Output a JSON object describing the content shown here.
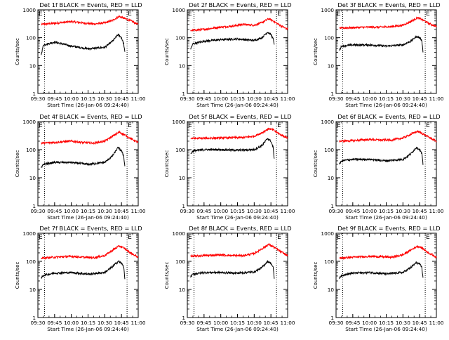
{
  "figure": {
    "ylabel": "Counts/sec",
    "xlabel": "Start Time (26-Jan-06 09:24:40)",
    "x_tick_labels": [
      "09:30",
      "09:45",
      "10:00",
      "10:15",
      "10:30",
      "10:45",
      "11:00"
    ],
    "y_tick_labels": [
      "1",
      "10",
      "100",
      "1000"
    ],
    "marker_glyph": "E",
    "colors": {
      "events": "#000000",
      "lld": "#ff0000",
      "axes": "#000000",
      "background": "#ffffff"
    }
  },
  "chart_data": [
    {
      "type": "line",
      "title": "Det 1f BLACK = Events, RED = LLD",
      "xlabel": "Start Time (26-Jan-06 09:24:40)",
      "ylabel": "Counts/sec",
      "xlim": [
        "09:30",
        "11:00"
      ],
      "ylim": [
        1,
        1000
      ],
      "yscale": "log",
      "grid": false,
      "markers": [
        "09:36",
        "10:50"
      ],
      "series": [
        {
          "color": "#ff0000",
          "x": [
            "09:33",
            "09:45",
            "10:00",
            "10:10",
            "10:20",
            "10:30",
            "10:37",
            "10:43",
            "10:47",
            "10:53",
            "11:00"
          ],
          "values": [
            300,
            330,
            380,
            340,
            310,
            340,
            420,
            580,
            500,
            410,
            300
          ]
        },
        {
          "color": "#000000",
          "x": [
            "09:33",
            "09:35",
            "09:45",
            "10:00",
            "10:15",
            "10:30",
            "10:37",
            "10:42",
            "10:45",
            "10:47",
            "10:48"
          ],
          "values": [
            25,
            55,
            70,
            50,
            40,
            45,
            75,
            130,
            100,
            60,
            30
          ]
        }
      ]
    },
    {
      "type": "line",
      "title": "Det 2f BLACK = Events, RED = LLD",
      "xlabel": "Start Time (26-Jan-06 09:24:40)",
      "ylabel": "Counts/sec",
      "xlim": [
        "09:30",
        "11:00"
      ],
      "ylim": [
        1,
        1000
      ],
      "yscale": "log",
      "grid": false,
      "markers": [
        "09:36",
        "10:50"
      ],
      "series": [
        {
          "color": "#ff0000",
          "x": [
            "09:33",
            "09:45",
            "10:00",
            "10:10",
            "10:20",
            "10:30",
            "10:37",
            "10:43",
            "10:47",
            "10:53",
            "11:00"
          ],
          "values": [
            180,
            200,
            240,
            260,
            300,
            280,
            350,
            480,
            400,
            280,
            200
          ]
        },
        {
          "color": "#000000",
          "x": [
            "09:33",
            "09:35",
            "09:45",
            "10:00",
            "10:15",
            "10:30",
            "10:37",
            "10:42",
            "10:45",
            "10:47",
            "10:48"
          ],
          "values": [
            40,
            60,
            75,
            85,
            90,
            80,
            100,
            160,
            130,
            90,
            60
          ]
        }
      ]
    },
    {
      "type": "line",
      "title": "Det 3f BLACK = Events, RED = LLD",
      "xlabel": "Start Time (26-Jan-06 09:24:40)",
      "ylabel": "Counts/sec",
      "xlim": [
        "09:30",
        "11:00"
      ],
      "ylim": [
        1,
        1000
      ],
      "yscale": "log",
      "grid": false,
      "markers": [
        "09:36",
        "10:50"
      ],
      "series": [
        {
          "color": "#ff0000",
          "x": [
            "09:33",
            "09:45",
            "10:00",
            "10:10",
            "10:20",
            "10:30",
            "10:37",
            "10:43",
            "10:47",
            "10:53",
            "11:00"
          ],
          "values": [
            220,
            230,
            240,
            240,
            250,
            280,
            380,
            520,
            450,
            330,
            250
          ]
        },
        {
          "color": "#000000",
          "x": [
            "09:33",
            "09:35",
            "09:45",
            "10:00",
            "10:15",
            "10:30",
            "10:37",
            "10:42",
            "10:45",
            "10:47",
            "10:48"
          ],
          "values": [
            35,
            50,
            55,
            55,
            50,
            55,
            75,
            110,
            100,
            80,
            30
          ]
        }
      ]
    },
    {
      "type": "line",
      "title": "Det 4f BLACK = Events, RED = LLD",
      "xlabel": "Start Time (26-Jan-06 09:24:40)",
      "ylabel": "Counts/sec",
      "xlim": [
        "09:30",
        "11:00"
      ],
      "ylim": [
        1,
        1000
      ],
      "yscale": "log",
      "grid": false,
      "markers": [
        "09:36",
        "10:50"
      ],
      "series": [
        {
          "color": "#ff0000",
          "x": [
            "09:33",
            "09:45",
            "10:00",
            "10:10",
            "10:20",
            "10:30",
            "10:37",
            "10:43",
            "10:47",
            "10:53",
            "11:00"
          ],
          "values": [
            170,
            180,
            200,
            180,
            170,
            200,
            300,
            420,
            350,
            250,
            180
          ]
        },
        {
          "color": "#000000",
          "x": [
            "09:33",
            "09:35",
            "09:45",
            "10:00",
            "10:15",
            "10:30",
            "10:37",
            "10:42",
            "10:45",
            "10:47",
            "10:48"
          ],
          "values": [
            22,
            30,
            35,
            35,
            30,
            35,
            60,
            120,
            90,
            60,
            25
          ]
        }
      ]
    },
    {
      "type": "line",
      "title": "Det 5f BLACK = Events, RED = LLD",
      "xlabel": "Start Time (26-Jan-06 09:24:40)",
      "ylabel": "Counts/sec",
      "xlim": [
        "09:30",
        "11:00"
      ],
      "ylim": [
        1,
        1000
      ],
      "yscale": "log",
      "grid": false,
      "markers": [
        "09:36",
        "10:50"
      ],
      "series": [
        {
          "color": "#ff0000",
          "x": [
            "09:33",
            "09:45",
            "10:00",
            "10:10",
            "10:20",
            "10:30",
            "10:37",
            "10:43",
            "10:47",
            "10:53",
            "11:00"
          ],
          "values": [
            250,
            255,
            260,
            265,
            270,
            300,
            400,
            560,
            500,
            350,
            260
          ]
        },
        {
          "color": "#000000",
          "x": [
            "09:33",
            "09:35",
            "09:45",
            "10:00",
            "10:15",
            "10:30",
            "10:37",
            "10:42",
            "10:45",
            "10:47",
            "10:48"
          ],
          "values": [
            70,
            90,
            100,
            100,
            95,
            100,
            140,
            250,
            200,
            120,
            45
          ]
        }
      ]
    },
    {
      "type": "line",
      "title": "Det 6f BLACK = Events, RED = LLD",
      "xlabel": "Start Time (26-Jan-06 09:24:40)",
      "ylabel": "Counts/sec",
      "xlim": [
        "09:30",
        "11:00"
      ],
      "ylim": [
        1,
        1000
      ],
      "yscale": "log",
      "grid": false,
      "markers": [
        "09:36",
        "10:50"
      ],
      "series": [
        {
          "color": "#ff0000",
          "x": [
            "09:33",
            "09:45",
            "10:00",
            "10:10",
            "10:20",
            "10:30",
            "10:37",
            "10:43",
            "10:47",
            "10:53",
            "11:00"
          ],
          "values": [
            200,
            210,
            230,
            220,
            220,
            260,
            350,
            450,
            380,
            280,
            200
          ]
        },
        {
          "color": "#000000",
          "x": [
            "09:33",
            "09:35",
            "09:45",
            "10:00",
            "10:15",
            "10:30",
            "10:37",
            "10:42",
            "10:45",
            "10:47",
            "10:48"
          ],
          "values": [
            30,
            40,
            45,
            45,
            40,
            45,
            70,
            120,
            100,
            70,
            30
          ]
        }
      ]
    },
    {
      "type": "line",
      "title": "Det 7f BLACK = Events, RED = LLD",
      "xlabel": "Start Time (26-Jan-06 09:24:40)",
      "ylabel": "Counts/sec",
      "xlim": [
        "09:30",
        "11:00"
      ],
      "ylim": [
        1,
        1000
      ],
      "yscale": "log",
      "grid": false,
      "markers": [
        "09:36",
        "10:50"
      ],
      "series": [
        {
          "color": "#ff0000",
          "x": [
            "09:33",
            "09:45",
            "10:00",
            "10:10",
            "10:20",
            "10:30",
            "10:37",
            "10:43",
            "10:47",
            "10:53",
            "11:00"
          ],
          "values": [
            130,
            140,
            150,
            140,
            135,
            160,
            250,
            350,
            300,
            200,
            140
          ]
        },
        {
          "color": "#000000",
          "x": [
            "09:33",
            "09:35",
            "09:45",
            "10:00",
            "10:15",
            "10:30",
            "10:37",
            "10:42",
            "10:45",
            "10:47",
            "10:48"
          ],
          "values": [
            25,
            32,
            38,
            40,
            35,
            40,
            65,
            100,
            85,
            65,
            25
          ]
        }
      ]
    },
    {
      "type": "line",
      "title": "Det 8f BLACK = Events, RED = LLD",
      "xlabel": "Start Time (26-Jan-06 09:24:40)",
      "ylabel": "Counts/sec",
      "xlim": [
        "09:30",
        "11:00"
      ],
      "ylim": [
        1,
        1000
      ],
      "yscale": "log",
      "grid": false,
      "markers": [
        "09:36",
        "10:50"
      ],
      "series": [
        {
          "color": "#ff0000",
          "x": [
            "09:33",
            "09:45",
            "10:00",
            "10:10",
            "10:20",
            "10:30",
            "10:37",
            "10:43",
            "10:47",
            "10:53",
            "11:00"
          ],
          "values": [
            150,
            160,
            170,
            160,
            160,
            190,
            280,
            400,
            330,
            230,
            160
          ]
        },
        {
          "color": "#000000",
          "x": [
            "09:33",
            "09:35",
            "09:45",
            "10:00",
            "10:15",
            "10:30",
            "10:37",
            "10:42",
            "10:45",
            "10:47",
            "10:48"
          ],
          "values": [
            28,
            35,
            40,
            40,
            38,
            42,
            60,
            100,
            85,
            60,
            25
          ]
        }
      ]
    },
    {
      "type": "line",
      "title": "Det 9f BLACK = Events, RED = LLD",
      "xlabel": "Start Time (26-Jan-06 09:24:40)",
      "ylabel": "Counts/sec",
      "xlim": [
        "09:30",
        "11:00"
      ],
      "ylim": [
        1,
        1000
      ],
      "yscale": "log",
      "grid": false,
      "markers": [
        "09:36",
        "10:50"
      ],
      "series": [
        {
          "color": "#ff0000",
          "x": [
            "09:33",
            "09:45",
            "10:00",
            "10:10",
            "10:20",
            "10:30",
            "10:37",
            "10:43",
            "10:47",
            "10:53",
            "11:00"
          ],
          "values": [
            130,
            140,
            150,
            145,
            140,
            170,
            250,
            350,
            300,
            200,
            140
          ]
        },
        {
          "color": "#000000",
          "x": [
            "09:33",
            "09:35",
            "09:45",
            "10:00",
            "10:15",
            "10:30",
            "10:37",
            "10:42",
            "10:45",
            "10:47",
            "10:48"
          ],
          "values": [
            25,
            32,
            38,
            40,
            36,
            40,
            60,
            90,
            80,
            60,
            25
          ]
        }
      ]
    }
  ]
}
